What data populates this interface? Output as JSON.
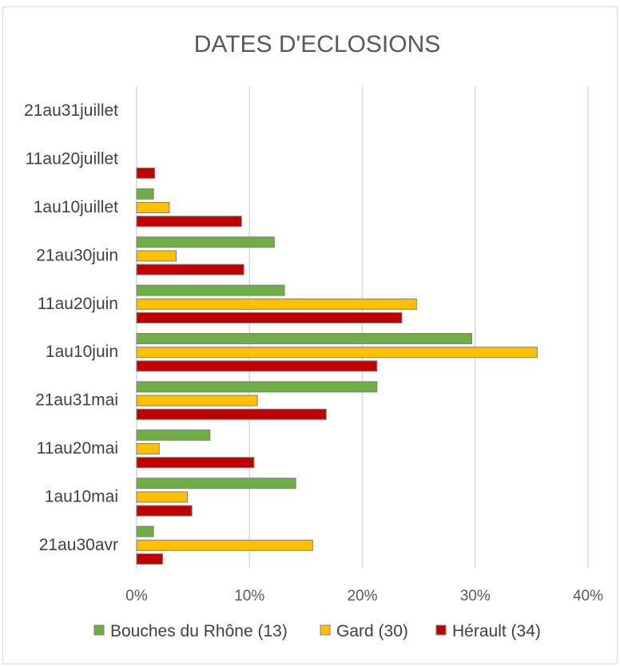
{
  "chart_data": {
    "type": "bar",
    "orientation": "horizontal",
    "title": "DATES D'ECLOSIONS",
    "xlabel": "",
    "ylabel": "",
    "xlim": [
      0,
      0.4
    ],
    "x_ticks": [
      0,
      0.1,
      0.2,
      0.3,
      0.4
    ],
    "x_tick_labels": [
      "0%",
      "10%",
      "20%",
      "30%",
      "40%"
    ],
    "grid": "vertical",
    "legend_position": "bottom",
    "categories": [
      "21au31juillet",
      "11au20juillet",
      "1au10juillet",
      "21au30juin",
      "11au20juin",
      "1au10juin",
      "21au31mai",
      "11au20mai",
      "1au10mai",
      "21au30avr"
    ],
    "series": [
      {
        "name": "Bouches du Rhône (13)",
        "color": "#70ad47",
        "values": [
          0,
          0,
          0.015,
          0.122,
          0.131,
          0.297,
          0.213,
          0.065,
          0.141,
          0.015
        ]
      },
      {
        "name": "Gard (30)",
        "color": "#ffc000",
        "values": [
          0,
          0,
          0.029,
          0.035,
          0.248,
          0.355,
          0.107,
          0.02,
          0.045,
          0.156
        ]
      },
      {
        "name": "Hérault (34)",
        "color": "#c00000",
        "values": [
          0,
          0.016,
          0.093,
          0.095,
          0.235,
          0.213,
          0.168,
          0.104,
          0.049,
          0.023
        ]
      }
    ]
  }
}
